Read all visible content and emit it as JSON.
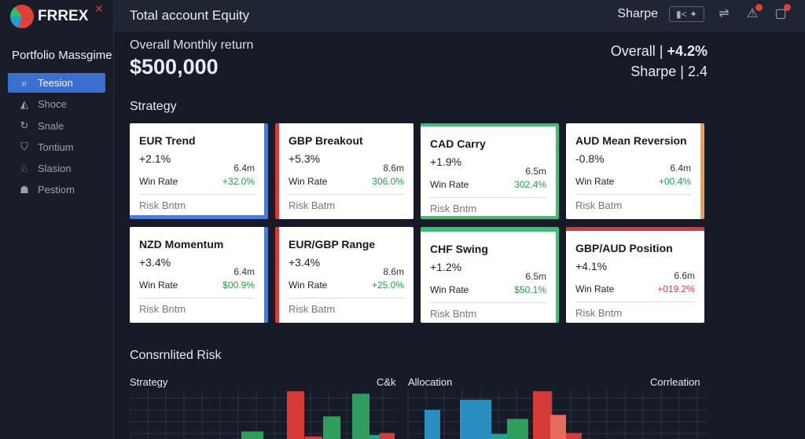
{
  "brand": {
    "name": "FRREX",
    "close_icon": "close-icon"
  },
  "sidebar": {
    "title": "Portfolio Massgime",
    "items": [
      {
        "label": "Teesion",
        "icon": "search-icon",
        "active": true
      },
      {
        "label": "Shoce",
        "icon": "chart-person-icon"
      },
      {
        "label": "Snale",
        "icon": "refresh-icon"
      },
      {
        "label": "Tontium",
        "icon": "filter-icon"
      },
      {
        "label": "Slasion",
        "icon": "bell-icon"
      },
      {
        "label": "Pestiom",
        "icon": "users-icon"
      }
    ]
  },
  "topbar": {
    "title": "Total account Equity",
    "sharpe_label": "Sharpe",
    "toggle_label": "▮< ✦"
  },
  "summary": {
    "monthly_label": "Overall Monthly return",
    "equity": "$500,000",
    "overall_label": "Overall",
    "overall_value": "+4.2%",
    "sharpe_label": "Sharpe",
    "sharpe_value": "2.4"
  },
  "strategy": {
    "title": "Strategy",
    "win_label": "Win Rate",
    "risk_label_a": "Risk Bntm",
    "cards": [
      {
        "name": "EUR Trend",
        "pct": "+2.1%",
        "size": "6.4m",
        "win": "+32.0%",
        "risk": "Risk Bntm",
        "accent": "#4a7bd6"
      },
      {
        "name": "GBP Breakout",
        "pct": "+5.3%",
        "size": "8.6m",
        "win": "306.0%",
        "risk": "Risk Batm",
        "accent": "#d63b36"
      },
      {
        "name": "CAD Carry",
        "pct": "+1.9%",
        "size": "6.5m",
        "win": "302.4%",
        "risk": "Risk Bntm",
        "accent": "#3dbd78"
      },
      {
        "name": "AUD Mean Reversion",
        "pct": "-0.8%",
        "size": "6.4m",
        "win": "+00.4%",
        "risk": "Risk Batm",
        "accent": "#e8a060"
      },
      {
        "name": "NZD Momentum",
        "pct": "+3.4%",
        "size": "6.4m",
        "win": "$00.9%",
        "risk": "Risk Bntm",
        "accent": "#4a7bd6"
      },
      {
        "name": "EUR/GBP Range",
        "pct": "+3.4%",
        "size": "8.6m",
        "win": "+25.0%",
        "risk": "Risk Batm",
        "accent": "#d63b36"
      },
      {
        "name": "CHF Swing",
        "pct": "+1.2%",
        "size": "6.5m",
        "win": "$50.1%",
        "risk": "Risk Bntm",
        "accent": "#3dbd78"
      },
      {
        "name": "GBP/AUD Position",
        "pct": "+4.1%",
        "size": "6.6m",
        "win": "+019.2%",
        "risk": "Risk Bntm",
        "accent": "#d63b36",
        "negative": true
      }
    ]
  },
  "risk": {
    "title": "Consrnlited Risk",
    "left_label": "Strategy",
    "left_right_label": "C&k",
    "right_label": "Allocation",
    "right_right_label": "Corrleation"
  },
  "chart_data": [
    {
      "type": "bar",
      "title": "Strategy",
      "values": [
        15,
        95,
        5,
        45,
        90,
        8,
        12
      ],
      "colors": [
        "#2f9e5c",
        "#d63b36",
        "#d63b36",
        "#2f9e5c",
        "#2f9e5c",
        "#1fa590",
        "#d63b36"
      ],
      "ylim": [
        0,
        100
      ],
      "grid": true
    },
    {
      "type": "bar",
      "title": "Allocation",
      "values": [
        58,
        78,
        10,
        40,
        95,
        48,
        12
      ],
      "colors": [
        "#2a8fc0",
        "#2a8fc0",
        "#1fa590",
        "#2f9e5c",
        "#d63b36",
        "#e86a5c",
        "#d63b36"
      ],
      "ylim": [
        0,
        100
      ],
      "grid": true
    }
  ]
}
